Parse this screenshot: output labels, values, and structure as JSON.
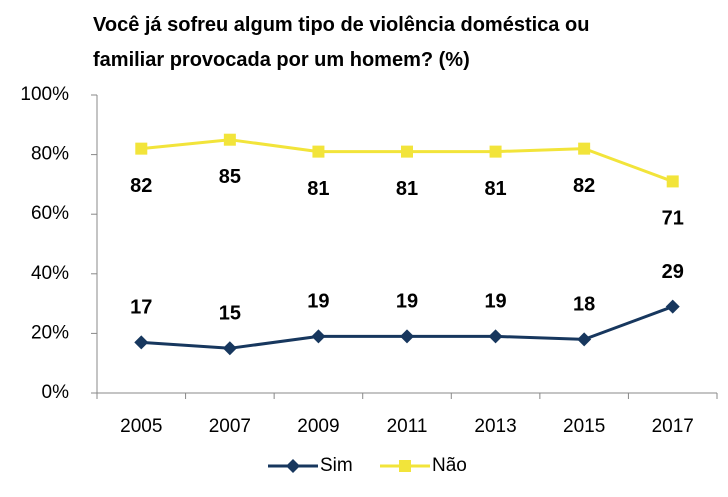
{
  "chart_data": {
    "type": "line",
    "title": "Você já sofreu algum tipo de violência doméstica ou familiar provocada por um homem? (%)",
    "categories": [
      "2005",
      "2007",
      "2009",
      "2011",
      "2013",
      "2015",
      "2017"
    ],
    "series": [
      {
        "name": "Sim",
        "color": "#17375e",
        "marker": "diamond",
        "label_position": "above",
        "values": [
          17,
          15,
          19,
          19,
          19,
          18,
          29
        ]
      },
      {
        "name": "Não",
        "color": "#f2e43a",
        "marker": "square",
        "label_position": "below",
        "values": [
          82,
          85,
          81,
          81,
          81,
          82,
          71
        ]
      }
    ],
    "ylim": [
      0,
      100
    ],
    "yticks": [
      {
        "value": 0,
        "label": "0%"
      },
      {
        "value": 20,
        "label": "20%"
      },
      {
        "value": 40,
        "label": "40%"
      },
      {
        "value": 60,
        "label": "60%"
      },
      {
        "value": 80,
        "label": "80%"
      },
      {
        "value": 100,
        "label": "100%"
      }
    ],
    "grid": false,
    "legend": "bottom"
  }
}
